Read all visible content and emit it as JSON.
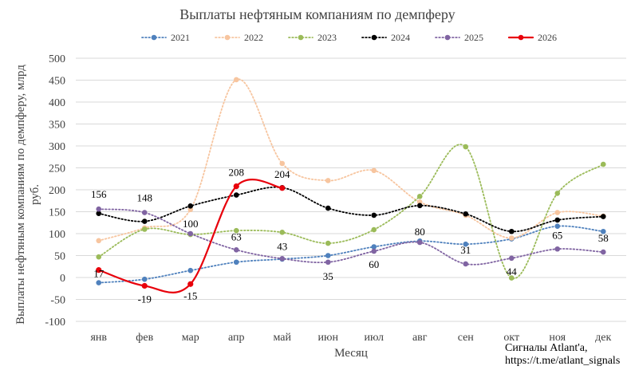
{
  "chart_data": {
    "type": "line",
    "title": "Выплаты нефтяным компаниям по демпферу",
    "xlabel": "Месяц",
    "ylabel": "Выплаты нефтяным компаниям по демпферу, млрд руб.",
    "ylim": [
      -100,
      500
    ],
    "ytick_step": 50,
    "grid": true,
    "legend_position": "top",
    "categories": [
      "янв",
      "фев",
      "мар",
      "апр",
      "май",
      "июн",
      "июл",
      "авг",
      "сен",
      "окт",
      "ноя",
      "дек"
    ],
    "series": [
      {
        "name": "2021",
        "color": "#4f81bd",
        "style": "dotted",
        "marker": true,
        "values": [
          -12,
          -4,
          16,
          35,
          42,
          50,
          70,
          83,
          76,
          88,
          117,
          105
        ]
      },
      {
        "name": "2022",
        "color": "#f7c59f",
        "style": "dotted",
        "marker": true,
        "values": [
          84,
          113,
          155,
          451,
          260,
          221,
          244,
          172,
          142,
          90,
          148,
          140
        ]
      },
      {
        "name": "2023",
        "color": "#9bbb59",
        "style": "dotted",
        "marker": true,
        "values": [
          47,
          110,
          98,
          107,
          103,
          78,
          109,
          185,
          298,
          -1,
          192,
          258
        ]
      },
      {
        "name": "2024",
        "color": "#000000",
        "style": "dotted",
        "marker": true,
        "values": [
          146,
          128,
          163,
          188,
          205,
          158,
          142,
          164,
          145,
          105,
          131,
          139
        ]
      },
      {
        "name": "2025",
        "color": "#8064a2",
        "style": "dotted",
        "marker": true,
        "values": [
          156,
          148,
          100,
          63,
          43,
          35,
          60,
          80,
          31,
          44,
          65,
          58
        ]
      },
      {
        "name": "2026",
        "color": "#e8000b",
        "style": "solid",
        "marker": true,
        "values": [
          17,
          -19,
          -15,
          208,
          204,
          null,
          null,
          null,
          null,
          null,
          null,
          null
        ]
      }
    ],
    "data_labels": [
      {
        "series": "2025",
        "month": 0,
        "text": "156"
      },
      {
        "series": "2025",
        "month": 1,
        "text": "148"
      },
      {
        "series": "2025",
        "month": 2,
        "text": "100"
      },
      {
        "series": "2025",
        "month": 3,
        "text": "63"
      },
      {
        "series": "2025",
        "month": 4,
        "text": "43"
      },
      {
        "series": "2025",
        "month": 5,
        "text": "35"
      },
      {
        "series": "2025",
        "month": 6,
        "text": "60"
      },
      {
        "series": "2025",
        "month": 7,
        "text": "80"
      },
      {
        "series": "2025",
        "month": 8,
        "text": "31"
      },
      {
        "series": "2025",
        "month": 9,
        "text": "44"
      },
      {
        "series": "2025",
        "month": 10,
        "text": "65"
      },
      {
        "series": "2025",
        "month": 11,
        "text": "58"
      },
      {
        "series": "2026",
        "month": 0,
        "text": "17"
      },
      {
        "series": "2026",
        "month": 1,
        "text": "-19"
      },
      {
        "series": "2026",
        "month": 2,
        "text": "-15"
      },
      {
        "series": "2026",
        "month": 3,
        "text": "208"
      },
      {
        "series": "2026",
        "month": 4,
        "text": "204"
      }
    ]
  },
  "attribution": {
    "line1": "Сигналы Atlant'a,",
    "line2": "https://t.me/atlant_signals"
  }
}
